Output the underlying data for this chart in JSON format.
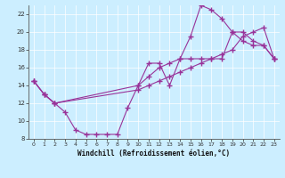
{
  "xlabel": "Windchill (Refroidissement éolien,°C)",
  "bg_color": "#cceeff",
  "line_color": "#993399",
  "xlim": [
    -0.5,
    23.5
  ],
  "ylim": [
    8,
    23
  ],
  "xticks": [
    0,
    1,
    2,
    3,
    4,
    5,
    6,
    7,
    8,
    9,
    10,
    11,
    12,
    13,
    14,
    15,
    16,
    17,
    18,
    19,
    20,
    21,
    22,
    23
  ],
  "yticks": [
    8,
    10,
    12,
    14,
    16,
    18,
    20,
    22
  ],
  "line1_x": [
    0,
    1,
    2,
    3,
    4,
    5,
    6,
    7,
    8,
    9,
    10,
    11,
    12,
    13,
    14,
    15,
    16,
    17,
    18,
    19,
    20,
    21,
    22,
    23
  ],
  "line1_y": [
    14.5,
    13.0,
    12.0,
    11.0,
    9.0,
    8.5,
    8.5,
    8.5,
    8.5,
    11.5,
    14.0,
    16.5,
    16.5,
    14.0,
    17.0,
    17.0,
    17.0,
    17.0,
    17.0,
    20.0,
    19.0,
    18.5,
    18.5,
    17.0
  ],
  "line2_x": [
    0,
    1,
    2,
    10,
    11,
    12,
    13,
    14,
    15,
    16,
    17,
    18,
    19,
    20,
    21,
    22,
    23
  ],
  "line2_y": [
    14.5,
    13.0,
    12.0,
    13.5,
    14.0,
    14.5,
    15.0,
    15.5,
    16.0,
    16.5,
    17.0,
    17.5,
    18.0,
    19.5,
    20.0,
    20.5,
    17.0
  ],
  "line3_x": [
    0,
    1,
    2,
    10,
    11,
    12,
    13,
    14,
    15,
    16,
    17,
    18,
    19,
    20,
    21,
    22,
    23
  ],
  "line3_y": [
    14.5,
    13.0,
    12.0,
    14.0,
    15.0,
    16.0,
    16.5,
    17.0,
    19.5,
    23.0,
    22.5,
    21.5,
    20.0,
    20.0,
    19.0,
    18.5,
    17.0
  ]
}
